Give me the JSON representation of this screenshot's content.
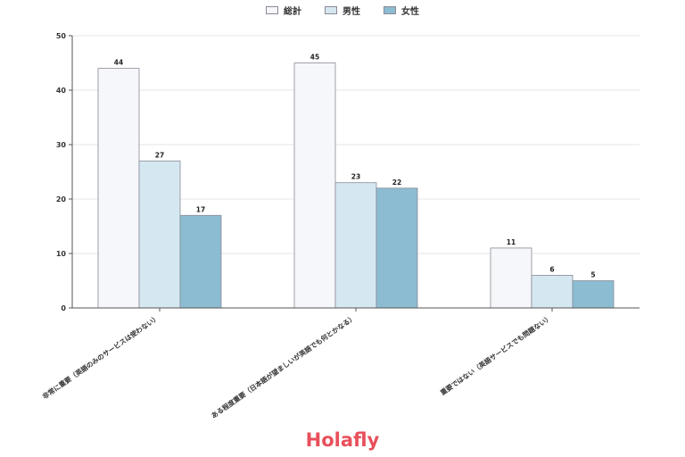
{
  "chart_data": {
    "type": "bar",
    "categories": [
      "非常に重要（英語のみのサービスは使わない）",
      "ある程度重要（日本語が望ましいが英語でも何とかなる）",
      "重要ではない（英語サービスでも問題ない）"
    ],
    "series": [
      {
        "name": "総計",
        "values": [
          44,
          45,
          11
        ],
        "color": "#f6f7fa"
      },
      {
        "name": "男性",
        "values": [
          27,
          23,
          6
        ],
        "color": "#d5e8f2"
      },
      {
        "name": "女性",
        "values": [
          17,
          22,
          5
        ],
        "color": "#8bbcd2"
      }
    ],
    "ylim": [
      0,
      50
    ],
    "yticks": [
      0,
      10,
      20,
      30,
      40,
      50
    ],
    "grid": true,
    "legend": "top-center",
    "title": "",
    "xlabel": "",
    "ylabel": ""
  },
  "brand": {
    "name": "Holafly",
    "color": "#e8505b"
  }
}
